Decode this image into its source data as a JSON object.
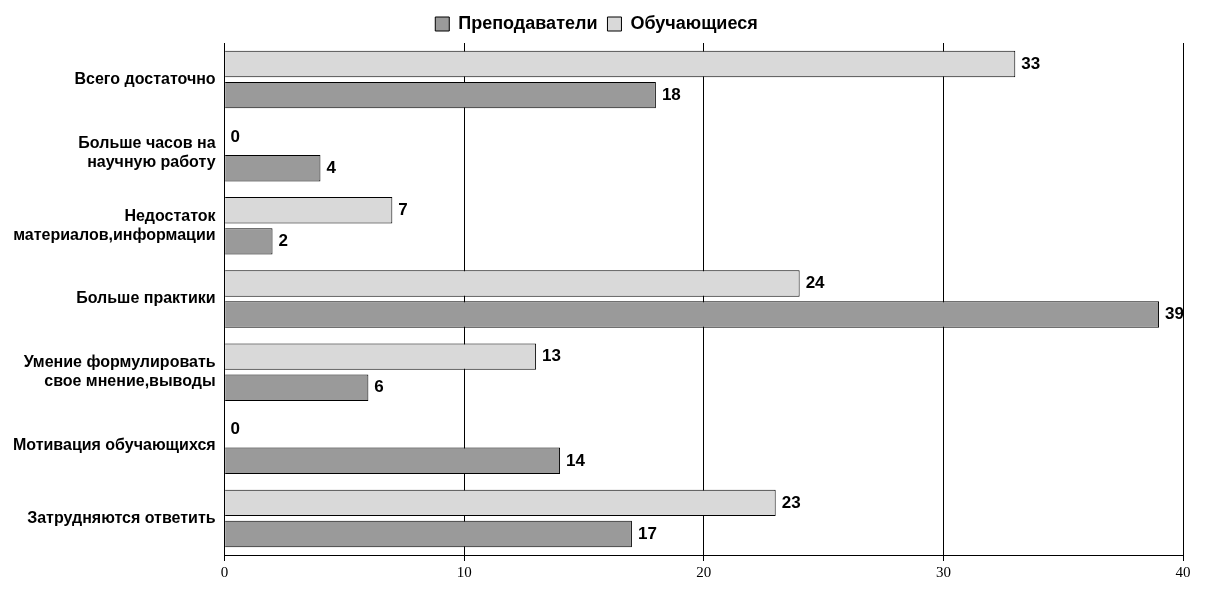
{
  "chart_data": {
    "type": "bar",
    "orientation": "horizontal",
    "categories": [
      "Всего достаточно",
      "Больше часов на научную работу",
      "Недостаток материалов,информации",
      "Больше практики",
      "Умение формулировать свое мнение,выводы",
      "Мотивация обучающихся",
      "Затрудняются ответить"
    ],
    "series": [
      {
        "name": "Преподаватели",
        "color": "#9a9a9a",
        "values": [
          18,
          4,
          2,
          39,
          6,
          14,
          17
        ]
      },
      {
        "name": "Обучающиеся",
        "color": "#d9d9d9",
        "values": [
          33,
          0,
          7,
          24,
          13,
          0,
          23
        ]
      }
    ],
    "xlim": [
      0,
      40
    ],
    "xticks": [
      0,
      10,
      20,
      30,
      40
    ],
    "grid": "x",
    "legend": "top",
    "data_labels": true
  }
}
